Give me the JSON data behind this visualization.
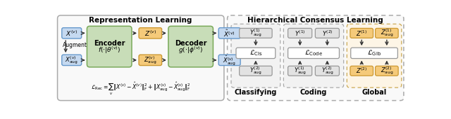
{
  "bg_color": "#ffffff",
  "left_title": "Representation Learning",
  "right_title": "Hierarchical Consensus Learning",
  "blue_fc": "#c5d9f0",
  "blue_ec": "#6699cc",
  "green_fc": "#c8ddb8",
  "green_ec": "#7aaa5a",
  "orange_fc": "#f5ca7a",
  "orange_ec": "#cc9933",
  "gray_fc": "#e2e2e2",
  "gray_ec": "#999999",
  "white_fc": "#ffffff",
  "white_ec": "#999999",
  "panel_fc": "#f9f9f9",
  "panel_ec": "#aaaaaa",
  "rpanel_fc": "#f9f9f9",
  "rpanel_ec": "#aaaaaa",
  "subpanel_fc": "#f5f5f5",
  "subpanel_ec": "#aaaaaa",
  "formula": "$\\mathcal{L}_{\\mathrm{Rec}} = \\sum_{v} \\| X^{(v)} - \\hat{X}^{(v)} \\|_{\\mathrm{F}}^{2} + \\| X_{\\mathrm{aug}}^{(v)} - \\hat{X}_{\\mathrm{aug}}^{(v)} \\|_{\\mathrm{F}}^{2}$",
  "classifying_label": "Classifying",
  "coding_label": "Coding",
  "global_label": "Global"
}
